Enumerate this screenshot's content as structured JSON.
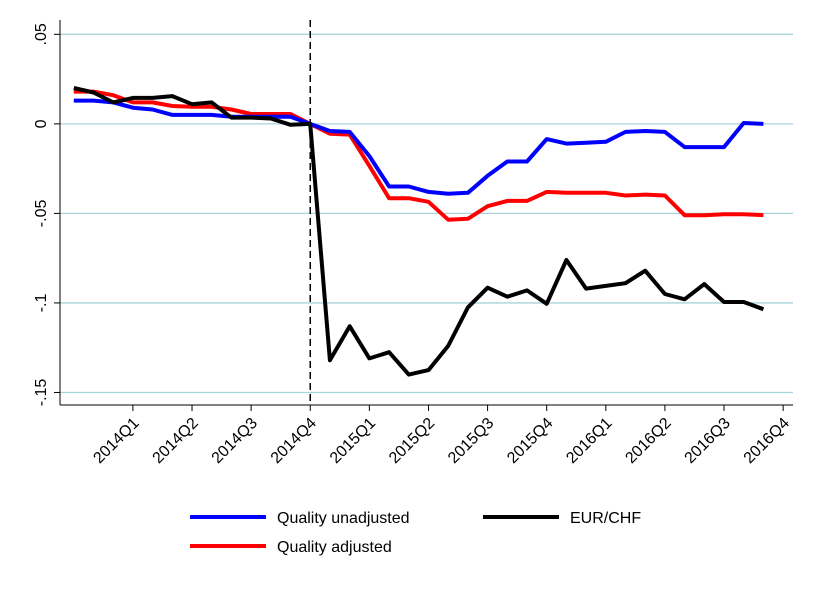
{
  "chart_data": {
    "type": "line",
    "x": [
      -3,
      -2,
      -1,
      0,
      1,
      2,
      3,
      4,
      5,
      6,
      7,
      8,
      9,
      10,
      11,
      12,
      13,
      14,
      15,
      16,
      17,
      18,
      19,
      20,
      21,
      22,
      23,
      24,
      25,
      26,
      27,
      28,
      29,
      30,
      31,
      32
    ],
    "xlim": [
      -3.7,
      33.5
    ],
    "xticks": [
      {
        "value": 0,
        "label": "2014Q1"
      },
      {
        "value": 3,
        "label": "2014Q2"
      },
      {
        "value": 6,
        "label": "2014Q3"
      },
      {
        "value": 9,
        "label": "2014Q4"
      },
      {
        "value": 12,
        "label": "2015Q1"
      },
      {
        "value": 15,
        "label": "2015Q2"
      },
      {
        "value": 18,
        "label": "2015Q3"
      },
      {
        "value": 21,
        "label": "2015Q4"
      },
      {
        "value": 24,
        "label": "2016Q1"
      },
      {
        "value": 27,
        "label": "2016Q2"
      },
      {
        "value": 30,
        "label": "2016Q3"
      },
      {
        "value": 33,
        "label": "2016Q4"
      }
    ],
    "ylim": [
      -0.157,
      0.058
    ],
    "yticks": [
      {
        "value": 0.05,
        "label": ".05"
      },
      0,
      {
        "value": -0.05,
        "label": "-.05"
      },
      {
        "value": -0.1,
        "label": "-.1"
      },
      {
        "value": -0.15,
        "label": "-.15"
      }
    ],
    "grid": true,
    "reference_line_x": 9,
    "legend": "bottom",
    "series": [
      {
        "name": "Quality unadjusted",
        "color": "#0000ff",
        "values": [
          0.013,
          0.013,
          0.012,
          0.009,
          0.008,
          0.005,
          0.005,
          0.005,
          0.004,
          0.004,
          0.004,
          0.004,
          0,
          -0.004,
          -0.0045,
          -0.018,
          -0.035,
          -0.035,
          -0.038,
          -0.039,
          -0.0385,
          -0.029,
          -0.021,
          -0.021,
          -0.0085,
          -0.011,
          -0.0105,
          -0.01,
          -0.0045,
          -0.004,
          -0.0045,
          -0.013,
          -0.013,
          -0.013,
          0.0005,
          0
        ]
      },
      {
        "name": "EUR/CHF",
        "color": "#000000",
        "values": [
          0.02,
          0.0175,
          0.012,
          0.0145,
          0.0145,
          0.0155,
          0.011,
          0.012,
          0.0035,
          0.0035,
          0.003,
          -0.0005,
          0,
          -0.132,
          -0.113,
          -0.131,
          -0.1275,
          -0.14,
          -0.1375,
          -0.124,
          -0.1025,
          -0.0915,
          -0.0965,
          -0.093,
          -0.1005,
          -0.076,
          -0.092,
          -0.0905,
          -0.089,
          -0.082,
          -0.095,
          -0.098,
          -0.0895,
          -0.0995,
          -0.0995,
          -0.1035
        ]
      },
      {
        "name": "Quality adjusted",
        "color": "#ff0000",
        "values": [
          0.018,
          0.018,
          0.016,
          0.012,
          0.012,
          0.01,
          0.0095,
          0.0095,
          0.008,
          0.0055,
          0.0055,
          0.0055,
          0,
          -0.0055,
          -0.006,
          -0.0235,
          -0.0415,
          -0.0415,
          -0.0435,
          -0.0535,
          -0.053,
          -0.046,
          -0.043,
          -0.043,
          -0.038,
          -0.0385,
          -0.0385,
          -0.0385,
          -0.04,
          -0.0395,
          -0.04,
          -0.051,
          -0.051,
          -0.0505,
          -0.0505,
          -0.051
        ]
      }
    ]
  }
}
